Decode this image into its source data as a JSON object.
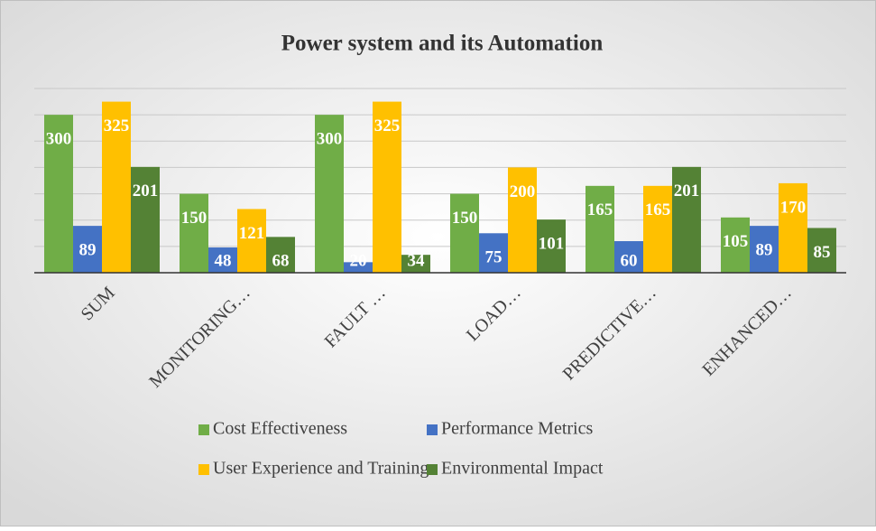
{
  "chart_data": {
    "type": "bar",
    "title": "Power system and its Automation",
    "categories": [
      "SUM",
      "MONITORING…",
      "FAULT …",
      "LOAD…",
      "PREDICTIVE…",
      "ENHANCED…"
    ],
    "series": [
      {
        "name": "Cost Effectiveness",
        "color": "#70ad47",
        "values": [
          300,
          150,
          300,
          150,
          165,
          105
        ]
      },
      {
        "name": "Performance Metrics",
        "color": "#4472c4",
        "values": [
          89,
          48,
          20,
          75,
          60,
          89
        ]
      },
      {
        "name": "User Experience and Training",
        "color": "#ffc000",
        "values": [
          325,
          121,
          325,
          200,
          165,
          170
        ]
      },
      {
        "name": "Environmental Impact",
        "color": "#548235",
        "values": [
          201,
          68,
          34,
          101,
          201,
          85
        ]
      }
    ],
    "ylim": [
      0,
      350
    ],
    "yticks": [
      0,
      50,
      100,
      150,
      200,
      250,
      300,
      350
    ],
    "grid": true
  }
}
